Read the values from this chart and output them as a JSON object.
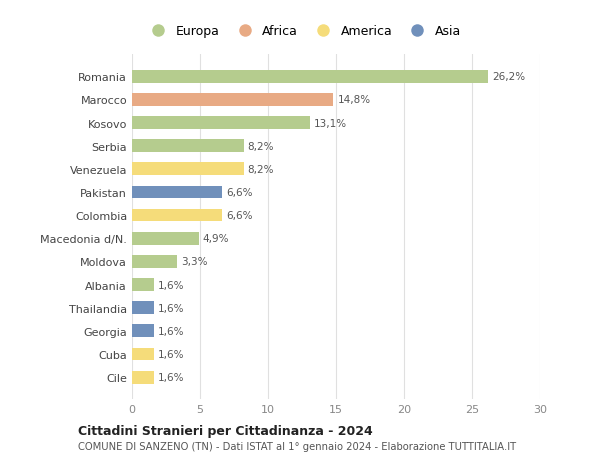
{
  "countries": [
    "Romania",
    "Marocco",
    "Kosovo",
    "Serbia",
    "Venezuela",
    "Pakistan",
    "Colombia",
    "Macedonia d/N.",
    "Moldova",
    "Albania",
    "Thailandia",
    "Georgia",
    "Cuba",
    "Cile"
  ],
  "values": [
    26.2,
    14.8,
    13.1,
    8.2,
    8.2,
    6.6,
    6.6,
    4.9,
    3.3,
    1.6,
    1.6,
    1.6,
    1.6,
    1.6
  ],
  "labels": [
    "26,2%",
    "14,8%",
    "13,1%",
    "8,2%",
    "8,2%",
    "6,6%",
    "6,6%",
    "4,9%",
    "3,3%",
    "1,6%",
    "1,6%",
    "1,6%",
    "1,6%",
    "1,6%"
  ],
  "colors": [
    "#b5cc8e",
    "#e8aa84",
    "#b5cc8e",
    "#b5cc8e",
    "#f5dc7a",
    "#7090bb",
    "#f5dc7a",
    "#b5cc8e",
    "#b5cc8e",
    "#b5cc8e",
    "#7090bb",
    "#7090bb",
    "#f5dc7a",
    "#f5dc7a"
  ],
  "legend_labels": [
    "Europa",
    "Africa",
    "America",
    "Asia"
  ],
  "legend_colors": [
    "#b5cc8e",
    "#e8aa84",
    "#f5dc7a",
    "#7090bb"
  ],
  "xlim": [
    0,
    30
  ],
  "xticks": [
    0,
    5,
    10,
    15,
    20,
    25,
    30
  ],
  "title": "Cittadini Stranieri per Cittadinanza - 2024",
  "subtitle": "COMUNE DI SANZENO (TN) - Dati ISTAT al 1° gennaio 2024 - Elaborazione TUTTITALIA.IT",
  "background_color": "#ffffff",
  "grid_color": "#e0e0e0",
  "bar_height": 0.55,
  "figwidth": 6.0,
  "figheight": 4.6,
  "dpi": 100
}
